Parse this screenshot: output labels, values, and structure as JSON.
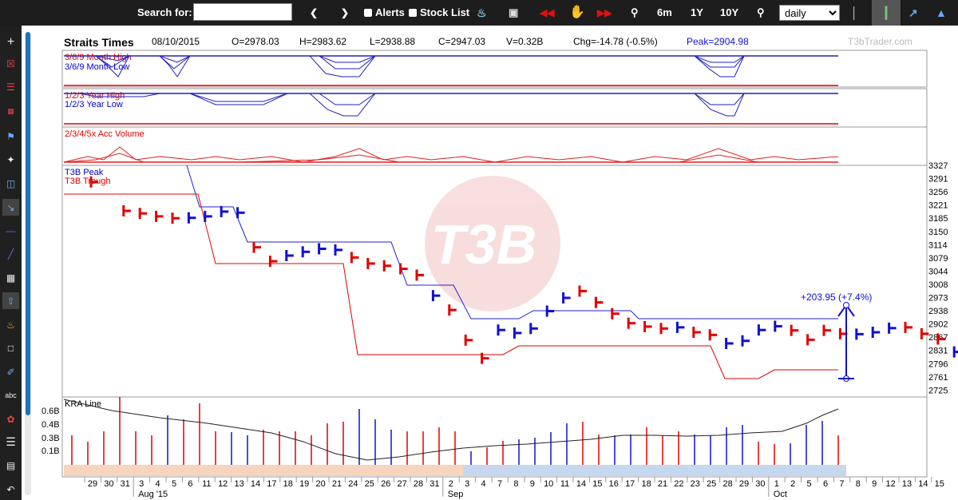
{
  "toolbar": {
    "search_label": "Search for:",
    "search_value": "",
    "alerts_label": "Alerts",
    "stocklist_label": "Stock List",
    "range_6m": "6m",
    "range_1y": "1Y",
    "range_10y": "10Y",
    "period_value": "daily",
    "period_options": [
      "daily"
    ]
  },
  "header": {
    "name": "Straits Times",
    "date": "08/10/2015",
    "open": "O=2978.03",
    "high": "H=2983.62",
    "low": "L=2938.88",
    "close": "C=2947.03",
    "volume": "V=0.32B",
    "change": "Chg=-14.78 (-0.5%)",
    "peak": "Peak=2904.98",
    "watermark": "T3bTrader.com"
  },
  "colors": {
    "up": "#1010d0",
    "down": "#e00000",
    "peak": "#2020d0",
    "trough": "#e00000"
  },
  "chart_data": [
    {
      "type": "line",
      "panel": "month-high-low",
      "series": [
        {
          "name": "3/6/9 Month High"
        },
        {
          "name": "3/6/9 Month Low"
        }
      ]
    },
    {
      "type": "line",
      "panel": "year-high-low",
      "series": [
        {
          "name": "1/2/3 Year High"
        },
        {
          "name": "1/2/3 Year Low"
        }
      ]
    },
    {
      "type": "line",
      "panel": "acc-volume",
      "series": [
        {
          "name": "2/3/4/5x Acc Volume"
        }
      ]
    },
    {
      "type": "candlestick",
      "panel": "price",
      "y_ticks": [
        3327,
        3291,
        3256,
        3221,
        3185,
        3150,
        3114,
        3079,
        3044,
        3008,
        2973,
        2938,
        2902,
        2867,
        2831,
        2796,
        2761,
        2725
      ],
      "ylim": [
        2725,
        3327
      ],
      "x_ticks": [
        "29",
        "30",
        "31",
        "3",
        "4",
        "5",
        "6",
        "11",
        "12",
        "13",
        "14",
        "17",
        "18",
        "19",
        "20",
        "21",
        "24",
        "25",
        "26",
        "27",
        "28",
        "31",
        "2",
        "3",
        "4",
        "7",
        "8",
        "9",
        "10",
        "11",
        "14",
        "15",
        "16",
        "17",
        "18",
        "21",
        "22",
        "23",
        "25",
        "28",
        "29",
        "30",
        "1",
        "2",
        "5",
        "6",
        "7",
        "8",
        "9",
        "12",
        "13",
        "14",
        "15"
      ],
      "month_labels": [
        {
          "label": "Aug '15",
          "after": "3"
        },
        {
          "label": "Sep",
          "after": "2"
        },
        {
          "label": "Oct",
          "after": "1"
        }
      ],
      "legend": [
        "T3B Peak",
        "T3B Trough"
      ],
      "bars": [
        {
          "d": "29",
          "c": 3282,
          "dir": "down"
        },
        {
          "d": "31",
          "c": 3205,
          "dir": "down"
        },
        {
          "d": "3",
          "c": 3198,
          "dir": "down"
        },
        {
          "d": "4",
          "c": 3190,
          "dir": "down"
        },
        {
          "d": "5",
          "c": 3185,
          "dir": "down"
        },
        {
          "d": "6",
          "c": 3186,
          "dir": "up"
        },
        {
          "d": "11",
          "c": 3190,
          "dir": "up"
        },
        {
          "d": "12",
          "c": 3203,
          "dir": "up"
        },
        {
          "d": "13",
          "c": 3200,
          "dir": "up"
        },
        {
          "d": "14",
          "c": 3107,
          "dir": "down"
        },
        {
          "d": "17",
          "c": 3070,
          "dir": "down"
        },
        {
          "d": "18",
          "c": 3085,
          "dir": "up"
        },
        {
          "d": "19",
          "c": 3095,
          "dir": "up"
        },
        {
          "d": "20",
          "c": 3103,
          "dir": "up"
        },
        {
          "d": "21",
          "c": 3100,
          "dir": "up"
        },
        {
          "d": "24",
          "c": 3080,
          "dir": "down"
        },
        {
          "d": "25",
          "c": 3064,
          "dir": "down"
        },
        {
          "d": "26",
          "c": 3058,
          "dir": "down"
        },
        {
          "d": "27",
          "c": 3050,
          "dir": "down"
        },
        {
          "d": "28",
          "c": 3033,
          "dir": "down"
        },
        {
          "d": "31",
          "c": 2978,
          "dir": "up"
        },
        {
          "d": "2",
          "c": 2940,
          "dir": "down"
        },
        {
          "d": "3",
          "c": 2859,
          "dir": "down"
        },
        {
          "d": "4",
          "c": 2810,
          "dir": "down"
        },
        {
          "d": "7",
          "c": 2886,
          "dir": "up"
        },
        {
          "d": "8",
          "c": 2878,
          "dir": "up"
        },
        {
          "d": "9",
          "c": 2890,
          "dir": "up"
        },
        {
          "d": "10",
          "c": 2937,
          "dir": "up"
        },
        {
          "d": "11",
          "c": 2972,
          "dir": "up"
        },
        {
          "d": "14",
          "c": 2990,
          "dir": "down"
        },
        {
          "d": "15",
          "c": 2960,
          "dir": "down"
        },
        {
          "d": "16",
          "c": 2930,
          "dir": "down"
        },
        {
          "d": "17",
          "c": 2904,
          "dir": "down"
        },
        {
          "d": "18",
          "c": 2895,
          "dir": "down"
        },
        {
          "d": "21",
          "c": 2890,
          "dir": "down"
        },
        {
          "d": "22",
          "c": 2893,
          "dir": "up"
        },
        {
          "d": "23",
          "c": 2880,
          "dir": "down"
        },
        {
          "d": "25",
          "c": 2873,
          "dir": "down"
        },
        {
          "d": "28",
          "c": 2850,
          "dir": "up"
        },
        {
          "d": "29",
          "c": 2857,
          "dir": "up"
        },
        {
          "d": "30",
          "c": 2886,
          "dir": "up"
        },
        {
          "d": "1",
          "c": 2896,
          "dir": "up"
        },
        {
          "d": "2",
          "c": 2885,
          "dir": "down"
        },
        {
          "d": "5",
          "c": 2860,
          "dir": "down"
        },
        {
          "d": "6",
          "c": 2885,
          "dir": "down"
        },
        {
          "d": "7",
          "c": 2876,
          "dir": "down"
        },
        {
          "d": "8",
          "c": 2875,
          "dir": "up"
        },
        {
          "d": "9",
          "c": 2880,
          "dir": "up"
        },
        {
          "d": "12",
          "c": 2891,
          "dir": "up"
        },
        {
          "d": "13",
          "c": 2893,
          "dir": "down"
        },
        {
          "d": "14",
          "c": 2876,
          "dir": "down"
        },
        {
          "d": "15",
          "c": 2862,
          "dir": "down"
        },
        {
          "d": "16",
          "c": 2827,
          "dir": "up"
        }
      ],
      "annotation": "+203.95 (+7.4%)"
    },
    {
      "type": "bar",
      "panel": "volume",
      "y_ticks": [
        "0.6B",
        "0.4B",
        "0.3B",
        "0.1B"
      ],
      "series": [
        {
          "name": "KRA Line"
        }
      ]
    }
  ]
}
